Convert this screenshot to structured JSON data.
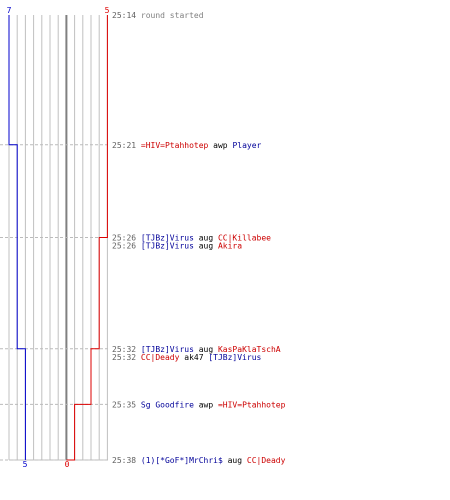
{
  "chart_data": {
    "type": "line",
    "title": "",
    "xlabel": "",
    "ylabel": "",
    "y_axis": "time (round clock)",
    "grid": true,
    "x_range": [
      -7,
      5
    ],
    "top_labels": {
      "left": "7",
      "right": "5"
    },
    "bottom_labels": {
      "left": "5",
      "right": "0"
    },
    "series": [
      {
        "team": "blue",
        "points": [
          {
            "time": "25:14",
            "value": 7
          },
          {
            "time": "25:21",
            "value": 6
          },
          {
            "time": "25:32",
            "value": 5
          },
          {
            "time": "25:38",
            "value": 5
          }
        ]
      },
      {
        "team": "red",
        "points": [
          {
            "time": "25:14",
            "value": 5
          },
          {
            "time": "25:26",
            "value": 4
          },
          {
            "time": "25:32",
            "value": 3
          },
          {
            "time": "25:35",
            "value": 1
          },
          {
            "time": "25:38",
            "value": 0
          }
        ]
      }
    ],
    "events": [
      {
        "time": "25:14",
        "parts": [
          {
            "text": "round started",
            "color": "#808080"
          }
        ]
      },
      {
        "time": "25:21",
        "parts": [
          {
            "text": "=HIV=Ptahhotep",
            "color": "#cc0000"
          },
          {
            "text": " awp ",
            "color": "#000000"
          },
          {
            "text": "Player",
            "color": "#000099"
          }
        ]
      },
      {
        "time": "25:26",
        "parts": [
          {
            "text": "[TJBz]Virus",
            "color": "#000099"
          },
          {
            "text": " aug ",
            "color": "#000000"
          },
          {
            "text": "CC|Killabee",
            "color": "#cc0000"
          }
        ]
      },
      {
        "time": "25:26",
        "parts": [
          {
            "text": "[TJBz]Virus",
            "color": "#000099"
          },
          {
            "text": " aug ",
            "color": "#000000"
          },
          {
            "text": "Akira",
            "color": "#cc0000"
          }
        ]
      },
      {
        "time": "25:32",
        "parts": [
          {
            "text": "[TJBz]Virus",
            "color": "#000099"
          },
          {
            "text": " aug ",
            "color": "#000000"
          },
          {
            "text": "KasPaKlaTschA",
            "color": "#cc0000"
          }
        ]
      },
      {
        "time": "25:32",
        "parts": [
          {
            "text": "CC|Deady",
            "color": "#cc0000"
          },
          {
            "text": " ak47 ",
            "color": "#000000"
          },
          {
            "text": "[TJBz]Virus",
            "color": "#000099"
          }
        ]
      },
      {
        "time": "25:35",
        "parts": [
          {
            "text": "Sg Goodfire",
            "color": "#000099"
          },
          {
            "text": " awp ",
            "color": "#000000"
          },
          {
            "text": "=HIV=Ptahhotep",
            "color": "#cc0000"
          }
        ]
      },
      {
        "time": "25:38",
        "parts": [
          {
            "text": "(1)[*GoF*]MrChri$",
            "color": "#000099"
          },
          {
            "text": " aug ",
            "color": "#000000"
          },
          {
            "text": "CC|Deady",
            "color": "#cc0000"
          }
        ]
      }
    ]
  },
  "colors": {
    "blue_team": "#0000cc",
    "red_team": "#dd0000",
    "grid": "#c0c0c0",
    "zero_line": "#808080",
    "time_text": "#606060",
    "dash": "#bbbbbb"
  }
}
